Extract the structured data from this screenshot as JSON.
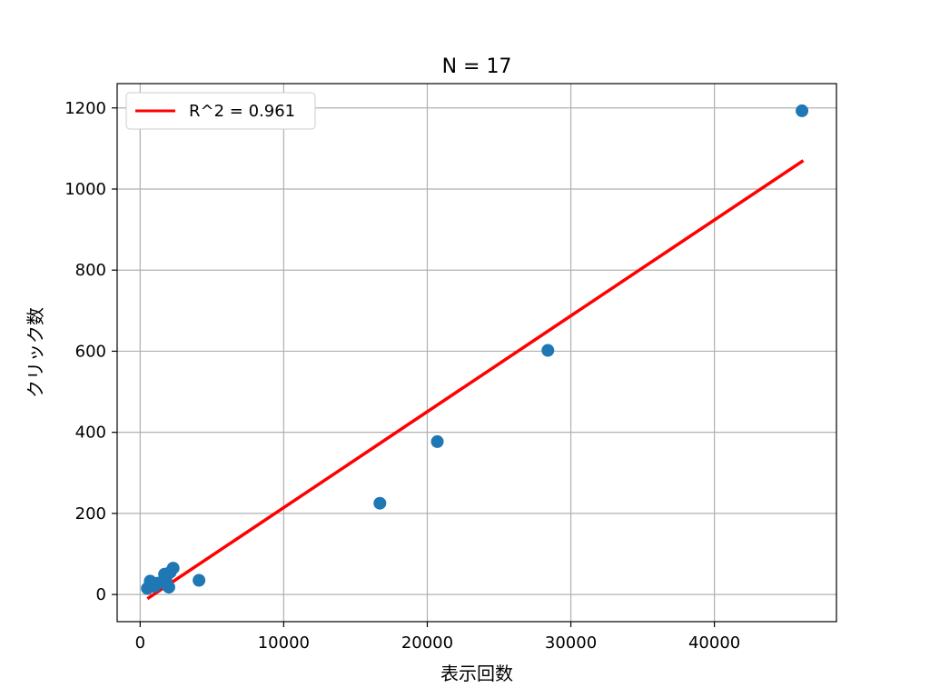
{
  "chart_data": {
    "type": "scatter",
    "title": "N = 17",
    "xlabel": "表示回数",
    "ylabel": "クリック数",
    "xlim": [
      -1600,
      48500
    ],
    "ylim": [
      -67,
      1260
    ],
    "xticks": [
      0,
      10000,
      20000,
      30000,
      40000
    ],
    "yticks": [
      0,
      200,
      400,
      600,
      800,
      1000,
      1200
    ],
    "grid": true,
    "legend_position": "top-left",
    "series": [
      {
        "name": "",
        "kind": "scatter",
        "color": "#1f77b4",
        "points": [
          {
            "x": 500,
            "y": 15
          },
          {
            "x": 700,
            "y": 33
          },
          {
            "x": 900,
            "y": 25
          },
          {
            "x": 1000,
            "y": 20
          },
          {
            "x": 1200,
            "y": 28
          },
          {
            "x": 1500,
            "y": 30
          },
          {
            "x": 1700,
            "y": 50
          },
          {
            "x": 1800,
            "y": 40
          },
          {
            "x": 1900,
            "y": 22
          },
          {
            "x": 2000,
            "y": 18
          },
          {
            "x": 2100,
            "y": 55
          },
          {
            "x": 2300,
            "y": 65
          },
          {
            "x": 4100,
            "y": 35
          },
          {
            "x": 16700,
            "y": 225
          },
          {
            "x": 20700,
            "y": 377
          },
          {
            "x": 28400,
            "y": 602
          },
          {
            "x": 46100,
            "y": 1193
          }
        ]
      },
      {
        "name": "R^2 = 0.961",
        "kind": "line",
        "color": "#ff0000",
        "points": [
          {
            "x": 600,
            "y": -8
          },
          {
            "x": 46100,
            "y": 1068
          }
        ]
      }
    ]
  }
}
